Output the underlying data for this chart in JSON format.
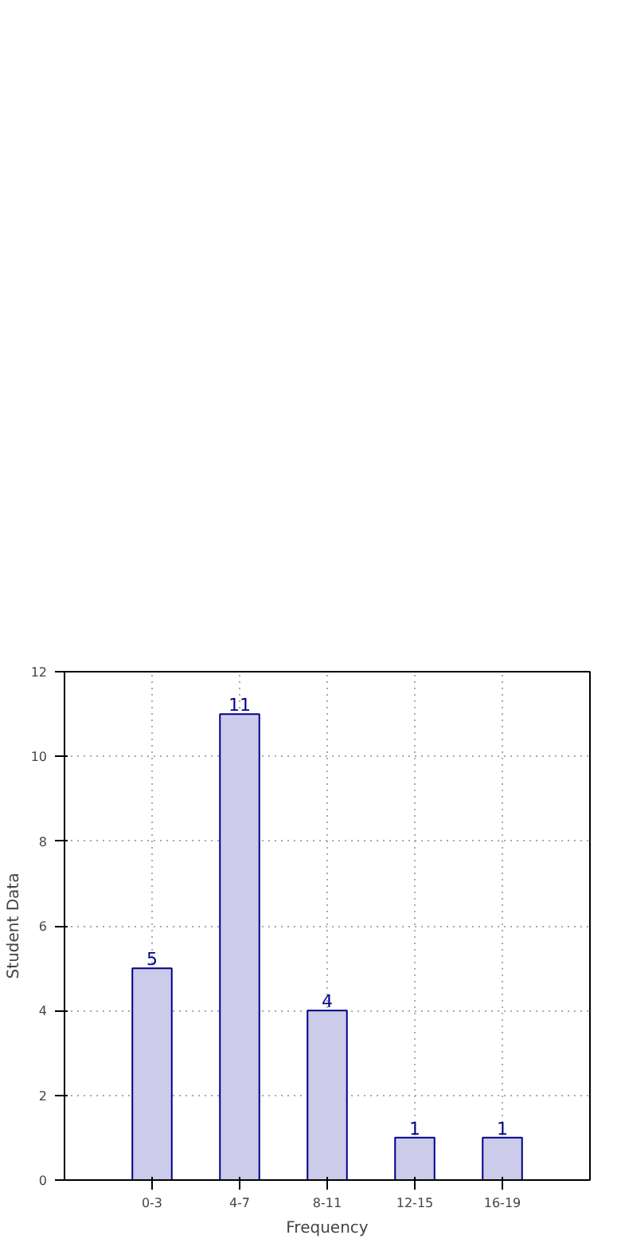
{
  "chart_data": {
    "type": "bar",
    "xlabel": "Frequency",
    "ylabel": "Student Data",
    "categories": [
      "0-3",
      "4-7",
      "8-11",
      "12-15",
      "16-19"
    ],
    "values": [
      5,
      11,
      4,
      1,
      1
    ],
    "color": "#ccccea",
    "ylim": [
      0,
      12
    ],
    "yticks": [
      0,
      2,
      4,
      6,
      8,
      10,
      12
    ],
    "grid": true,
    "data_labels": true
  }
}
